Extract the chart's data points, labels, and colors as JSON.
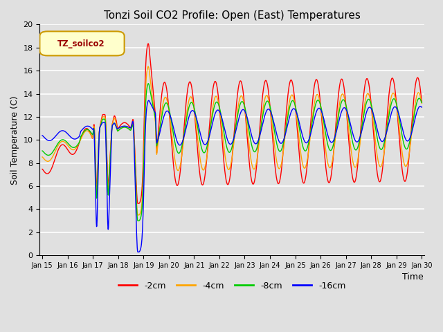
{
  "title": "Tonzi Soil CO2 Profile: Open (East) Temperatures",
  "xlabel": "Time",
  "ylabel": "Soil Temperature (C)",
  "ylim": [
    0,
    20
  ],
  "background_color": "#e0e0e0",
  "colors": {
    "-2cm": "#ff0000",
    "-4cm": "#ffa500",
    "-8cm": "#00cc00",
    "-16cm": "#0000ff"
  },
  "legend_label": "TZ_soilco2",
  "legend_box_color": "#ffffcc",
  "legend_border_color": "#cc9900",
  "xtick_labels": [
    "Jan 15",
    "Jan 16",
    "Jan 17",
    "Jan 18",
    "Jan 19",
    "Jan 20",
    "Jan 21",
    "Jan 22",
    "Jan 23",
    "Jan 24",
    "Jan 25",
    "Jan 26",
    "Jan 27",
    "Jan 28",
    "Jan 29",
    "Jan 30"
  ],
  "series_labels": [
    "-2cm",
    "-4cm",
    "-8cm",
    "-16cm"
  ]
}
